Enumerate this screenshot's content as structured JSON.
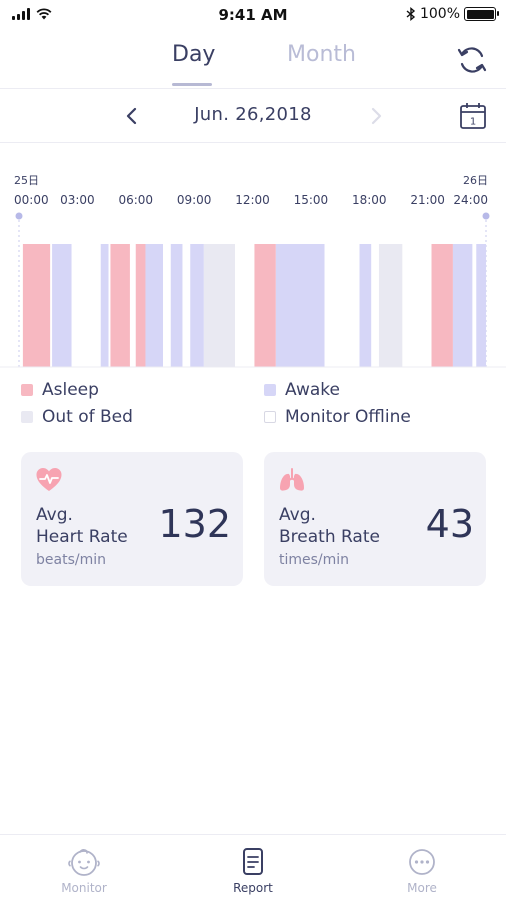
{
  "status_bar": {
    "time": "9:41 AM",
    "battery": "100%"
  },
  "tabs": [
    {
      "label": "Day",
      "active": true
    },
    {
      "label": "Month",
      "active": false
    }
  ],
  "date": {
    "label": "Jun. 26,2018"
  },
  "chart_data": {
    "type": "bar",
    "start_day_label": "25日",
    "end_day_label": "26日",
    "x_ticks": [
      "00:00",
      "03:00",
      "06:00",
      "09:00",
      "12:00",
      "15:00",
      "18:00",
      "21:00",
      "24:00"
    ],
    "x_range_hours": [
      0,
      24
    ],
    "segments": [
      {
        "state": "asleep",
        "start": 0.2,
        "end": 1.6
      },
      {
        "state": "awake",
        "start": 1.7,
        "end": 2.7
      },
      {
        "state": "awake",
        "start": 4.2,
        "end": 4.6
      },
      {
        "state": "asleep",
        "start": 4.7,
        "end": 5.7
      },
      {
        "state": "asleep",
        "start": 6.0,
        "end": 6.5
      },
      {
        "state": "awake",
        "start": 6.5,
        "end": 7.4
      },
      {
        "state": "awake",
        "start": 7.8,
        "end": 8.4
      },
      {
        "state": "awake",
        "start": 8.8,
        "end": 9.5
      },
      {
        "state": "out_of_bed",
        "start": 9.5,
        "end": 11.1
      },
      {
        "state": "asleep",
        "start": 12.1,
        "end": 13.2
      },
      {
        "state": "awake",
        "start": 13.2,
        "end": 15.7
      },
      {
        "state": "awake",
        "start": 17.5,
        "end": 18.1
      },
      {
        "state": "out_of_bed",
        "start": 18.5,
        "end": 19.7
      },
      {
        "state": "asleep",
        "start": 21.2,
        "end": 22.3
      },
      {
        "state": "awake",
        "start": 22.3,
        "end": 23.3
      },
      {
        "state": "awake",
        "start": 23.5,
        "end": 24.0
      }
    ],
    "colors": {
      "asleep": "#f7b8c1",
      "awake": "#d6d6f7",
      "out_of_bed": "#e9e9f2",
      "monitor_offline": "#ffffff"
    }
  },
  "legend": [
    {
      "key": "asleep",
      "label": "Asleep",
      "color": "#f7b8c1"
    },
    {
      "key": "awake",
      "label": "Awake",
      "color": "#d6d6f7"
    },
    {
      "key": "out_of_bed",
      "label": "Out of Bed",
      "color": "#e9e9f2"
    },
    {
      "key": "monitor_offline",
      "label": "Monitor Offline",
      "color": "#ffffff"
    }
  ],
  "cards": {
    "heart": {
      "title_line1": "Avg.",
      "title_line2": "Heart Rate",
      "unit": "beats/min",
      "value": "132",
      "icon": "heart-pulse-icon",
      "icon_color": "#f7a3b1"
    },
    "breath": {
      "title_line1": "Avg.",
      "title_line2": "Breath Rate",
      "unit": "times/min",
      "value": "43",
      "icon": "lungs-icon",
      "icon_color": "#f7a3b1"
    }
  },
  "bottom_nav": [
    {
      "label": "Monitor",
      "icon": "baby-face-icon",
      "active": false
    },
    {
      "label": "Report",
      "icon": "report-icon",
      "active": true
    },
    {
      "label": "More",
      "icon": "more-dots-icon",
      "active": false
    }
  ]
}
